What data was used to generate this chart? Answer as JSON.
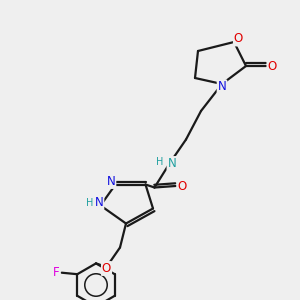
{
  "bg_color": "#efefef",
  "bond_color": "#1a1a1a",
  "bond_width": 1.6,
  "atom_colors": {
    "N": "#1010e0",
    "NH": "#20a0a0",
    "O": "#e00000",
    "F": "#e000e0",
    "H": "#888888",
    "C": "#1a1a1a"
  },
  "font_size_atom": 8.5,
  "font_size_small": 7.0
}
